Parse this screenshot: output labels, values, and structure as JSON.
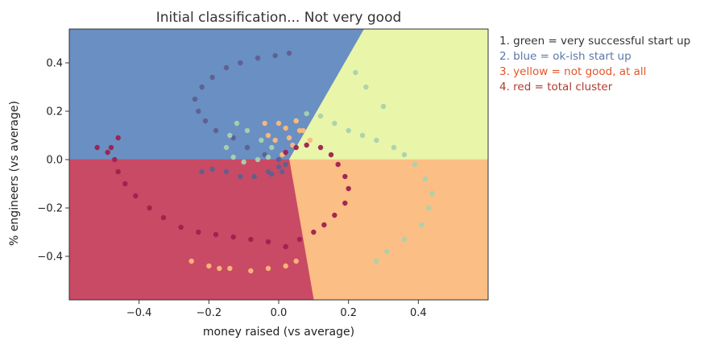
{
  "chart_data": {
    "type": "scatter",
    "title": "Initial classification... Not very good",
    "xlabel": "money raised (vs average)",
    "ylabel": "% engineers (vs average)",
    "xlim": [
      -0.6,
      0.6
    ],
    "ylim": [
      -0.58,
      0.54
    ],
    "xticks": [
      -0.4,
      -0.2,
      0.0,
      0.2,
      0.4
    ],
    "xtick_labels": [
      "−0.4",
      "−0.2",
      "0.0",
      "0.2",
      "0.4"
    ],
    "yticks": [
      -0.4,
      -0.2,
      0.0,
      0.2,
      0.4
    ],
    "ytick_labels": [
      "−0.4",
      "−0.2",
      "0.0",
      "0.2",
      "0.4"
    ],
    "grid": false,
    "decision_regions": [
      {
        "class": "blue",
        "color": "#6a8fc2",
        "polygon": [
          [
            -0.6,
            0.0
          ],
          [
            0.03,
            0.0
          ],
          [
            0.245,
            0.54
          ],
          [
            -0.6,
            0.54
          ]
        ]
      },
      {
        "class": "green",
        "color": "#e9f5a9",
        "polygon": [
          [
            0.245,
            0.54
          ],
          [
            0.03,
            0.0
          ],
          [
            0.6,
            0.0
          ],
          [
            0.6,
            0.54
          ]
        ]
      },
      {
        "class": "yellow",
        "color": "#fbbe84",
        "polygon": [
          [
            0.03,
            0.0
          ],
          [
            0.6,
            0.0
          ],
          [
            0.6,
            -0.58
          ],
          [
            0.1,
            -0.58
          ]
        ]
      },
      {
        "class": "red",
        "color": "#c94a64",
        "polygon": [
          [
            -0.6,
            0.0
          ],
          [
            0.03,
            0.0
          ],
          [
            0.1,
            -0.58
          ],
          [
            -0.6,
            -0.58
          ]
        ]
      }
    ],
    "series": [
      {
        "color": "#5f5f8f",
        "points": [
          [
            0.0,
            0.0
          ],
          [
            -0.04,
            0.02
          ],
          [
            -0.09,
            0.05
          ],
          [
            -0.13,
            0.09
          ],
          [
            -0.18,
            0.12
          ],
          [
            -0.21,
            0.16
          ],
          [
            -0.23,
            0.2
          ],
          [
            -0.24,
            0.25
          ],
          [
            -0.22,
            0.3
          ],
          [
            -0.19,
            0.34
          ],
          [
            -0.15,
            0.38
          ],
          [
            -0.11,
            0.4
          ],
          [
            -0.06,
            0.42
          ],
          [
            -0.01,
            0.43
          ],
          [
            0.03,
            0.44
          ],
          [
            0.0,
            -0.03
          ],
          [
            -0.03,
            -0.05
          ],
          [
            -0.07,
            -0.07
          ],
          [
            -0.11,
            -0.07
          ],
          [
            -0.15,
            -0.05
          ],
          [
            -0.19,
            -0.04
          ],
          [
            -0.22,
            -0.05
          ],
          [
            0.01,
            -0.05
          ],
          [
            0.02,
            -0.02
          ],
          [
            -0.02,
            -0.06
          ]
        ]
      },
      {
        "color": "#a9d2ad",
        "points": [
          [
            -0.02,
            0.05
          ],
          [
            -0.05,
            0.08
          ],
          [
            -0.09,
            0.12
          ],
          [
            -0.12,
            0.15
          ],
          [
            -0.14,
            0.1
          ],
          [
            -0.15,
            0.05
          ],
          [
            -0.13,
            0.01
          ],
          [
            -0.1,
            -0.01
          ],
          [
            -0.06,
            0.0
          ],
          [
            -0.03,
            0.01
          ],
          [
            0.05,
            0.16
          ],
          [
            0.08,
            0.19
          ],
          [
            0.12,
            0.18
          ],
          [
            0.16,
            0.15
          ],
          [
            0.2,
            0.12
          ],
          [
            0.24,
            0.1
          ],
          [
            0.28,
            0.08
          ],
          [
            0.33,
            0.05
          ],
          [
            0.36,
            0.02
          ],
          [
            0.39,
            -0.02
          ],
          [
            0.42,
            -0.08
          ],
          [
            0.44,
            -0.14
          ],
          [
            0.43,
            -0.2
          ],
          [
            0.41,
            -0.27
          ],
          [
            0.36,
            -0.33
          ],
          [
            0.31,
            -0.38
          ],
          [
            0.28,
            -0.42
          ],
          [
            0.22,
            0.36
          ],
          [
            0.25,
            0.3
          ],
          [
            0.3,
            0.22
          ]
        ]
      },
      {
        "color": "#fdb87c",
        "points": [
          [
            0.01,
            0.02
          ],
          [
            -0.01,
            0.08
          ],
          [
            0.02,
            0.13
          ],
          [
            0.05,
            0.16
          ],
          [
            0.07,
            0.12
          ],
          [
            0.09,
            0.08
          ],
          [
            -0.04,
            0.15
          ],
          [
            -0.03,
            0.1
          ],
          [
            0.0,
            0.15
          ],
          [
            0.04,
            0.06
          ],
          [
            -0.25,
            -0.42
          ],
          [
            -0.2,
            -0.44
          ],
          [
            -0.14,
            -0.45
          ],
          [
            -0.08,
            -0.46
          ],
          [
            -0.03,
            -0.45
          ],
          [
            0.02,
            -0.44
          ],
          [
            0.05,
            -0.42
          ],
          [
            -0.17,
            -0.45
          ],
          [
            0.06,
            0.12
          ],
          [
            0.03,
            0.09
          ]
        ]
      },
      {
        "color": "#9e2050",
        "points": [
          [
            0.02,
            0.03
          ],
          [
            0.05,
            0.05
          ],
          [
            0.08,
            0.06
          ],
          [
            0.12,
            0.05
          ],
          [
            0.15,
            0.02
          ],
          [
            0.17,
            -0.02
          ],
          [
            0.19,
            -0.07
          ],
          [
            0.2,
            -0.12
          ],
          [
            0.19,
            -0.18
          ],
          [
            0.16,
            -0.23
          ],
          [
            0.13,
            -0.27
          ],
          [
            0.1,
            -0.3
          ],
          [
            0.06,
            -0.33
          ],
          [
            0.02,
            -0.36
          ],
          [
            -0.03,
            -0.34
          ],
          [
            -0.08,
            -0.33
          ],
          [
            -0.13,
            -0.32
          ],
          [
            -0.18,
            -0.31
          ],
          [
            -0.23,
            -0.3
          ],
          [
            -0.28,
            -0.28
          ],
          [
            -0.33,
            -0.24
          ],
          [
            -0.37,
            -0.2
          ],
          [
            -0.41,
            -0.15
          ],
          [
            -0.44,
            -0.1
          ],
          [
            -0.46,
            -0.05
          ],
          [
            -0.47,
            0.0
          ],
          [
            -0.48,
            0.05
          ],
          [
            -0.46,
            0.09
          ],
          [
            -0.52,
            0.05
          ],
          [
            -0.49,
            0.03
          ]
        ]
      }
    ],
    "legend_position": "outside-right"
  },
  "legend": {
    "items": [
      {
        "text": "1. green = very successful start up",
        "color": "#333333"
      },
      {
        "text": "2. blue = ok-ish start up",
        "color": "#5a78a8"
      },
      {
        "text": "3. yellow = not good, at all",
        "color": "#e4552a"
      },
      {
        "text": "4. red = total cluster",
        "color": "#b03a2e"
      }
    ]
  }
}
